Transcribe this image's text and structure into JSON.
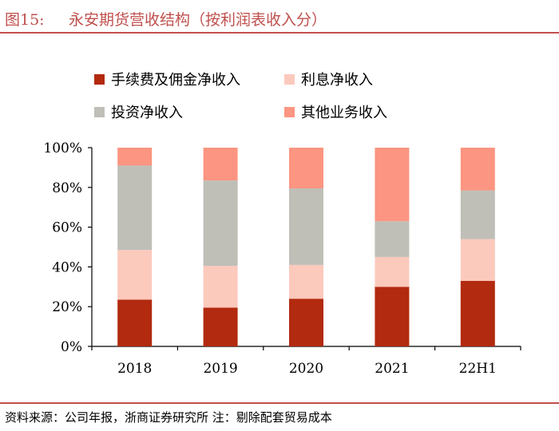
{
  "header": {
    "figure_label": "图15:",
    "title": "永安期货营收结构（按利润表收入分）"
  },
  "footer": {
    "source": "资料来源：公司年报，浙商证券研究所 注：剔除配套贸易成本"
  },
  "chart_data": {
    "type": "bar",
    "stacked": true,
    "title": "永安期货营收结构（按利润表收入分）",
    "categories": [
      "2018",
      "2019",
      "2020",
      "2021",
      "22H1"
    ],
    "series": [
      {
        "name": "手续费及佣金净收入",
        "color": "#b22a0f",
        "values": [
          23.5,
          19.5,
          24,
          30,
          33
        ]
      },
      {
        "name": "利息净收入",
        "color": "#fcc9bd",
        "values": [
          25,
          21,
          17,
          15,
          21
        ]
      },
      {
        "name": "投资净收入",
        "color": "#bfbfb8",
        "values": [
          42.5,
          43,
          38.5,
          18,
          24.5
        ]
      },
      {
        "name": "其他业务收入",
        "color": "#fc9581",
        "values": [
          9,
          16.5,
          20.5,
          37,
          21.5
        ]
      }
    ],
    "ylim": [
      0,
      100
    ],
    "yticks": [
      "0%",
      "20%",
      "40%",
      "60%",
      "80%",
      "100%"
    ],
    "xlabel": "",
    "ylabel": "",
    "legend_position": "top"
  }
}
